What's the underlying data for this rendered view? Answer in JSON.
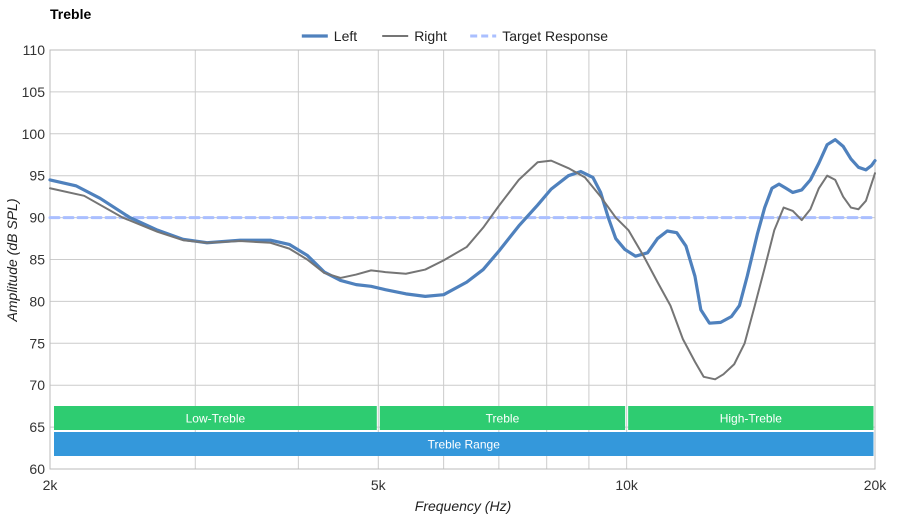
{
  "chart_data": {
    "type": "line",
    "title": "Treble",
    "xlabel": "Frequency (Hz)",
    "ylabel": "Amplitude (dB SPL)",
    "x_scale": "log",
    "xlim": [
      2000,
      20000
    ],
    "ylim": [
      60,
      110
    ],
    "x_ticks": [
      {
        "value": 2000,
        "label": "2k"
      },
      {
        "value": 5000,
        "label": "5k"
      },
      {
        "value": 10000,
        "label": "10k"
      },
      {
        "value": 20000,
        "label": "20k"
      }
    ],
    "x_grid": [
      2000,
      3000,
      4000,
      5000,
      6000,
      7000,
      8000,
      9000,
      10000,
      20000
    ],
    "y_ticks": [
      60,
      65,
      70,
      75,
      80,
      85,
      90,
      95,
      100,
      105,
      110
    ],
    "grid": true,
    "legend": "top-center",
    "series": [
      {
        "name": "Left",
        "color": "#4f81bd",
        "style": "solid-thick",
        "points": [
          [
            2000,
            94.5
          ],
          [
            2150,
            93.8
          ],
          [
            2300,
            92.3
          ],
          [
            2500,
            90.0
          ],
          [
            2700,
            88.5
          ],
          [
            2900,
            87.4
          ],
          [
            3100,
            87.0
          ],
          [
            3400,
            87.3
          ],
          [
            3700,
            87.3
          ],
          [
            3900,
            86.8
          ],
          [
            4100,
            85.5
          ],
          [
            4300,
            83.5
          ],
          [
            4500,
            82.5
          ],
          [
            4700,
            82.0
          ],
          [
            4900,
            81.8
          ],
          [
            5100,
            81.4
          ],
          [
            5400,
            80.9
          ],
          [
            5700,
            80.6
          ],
          [
            6000,
            80.8
          ],
          [
            6400,
            82.3
          ],
          [
            6700,
            83.8
          ],
          [
            7000,
            86.0
          ],
          [
            7400,
            89.0
          ],
          [
            7800,
            91.5
          ],
          [
            8100,
            93.4
          ],
          [
            8500,
            95.0
          ],
          [
            8800,
            95.5
          ],
          [
            9100,
            94.8
          ],
          [
            9300,
            93.0
          ],
          [
            9500,
            90.0
          ],
          [
            9700,
            87.5
          ],
          [
            9950,
            86.2
          ],
          [
            10250,
            85.4
          ],
          [
            10600,
            85.8
          ],
          [
            10900,
            87.5
          ],
          [
            11200,
            88.4
          ],
          [
            11500,
            88.2
          ],
          [
            11800,
            86.6
          ],
          [
            12100,
            83.0
          ],
          [
            12300,
            79.0
          ],
          [
            12600,
            77.4
          ],
          [
            13000,
            77.5
          ],
          [
            13400,
            78.2
          ],
          [
            13700,
            79.5
          ],
          [
            14000,
            83.0
          ],
          [
            14400,
            88.0
          ],
          [
            14700,
            91.2
          ],
          [
            15000,
            93.5
          ],
          [
            15300,
            94.0
          ],
          [
            15600,
            93.5
          ],
          [
            15900,
            93.0
          ],
          [
            16300,
            93.3
          ],
          [
            16700,
            94.5
          ],
          [
            17100,
            96.5
          ],
          [
            17500,
            98.7
          ],
          [
            17900,
            99.3
          ],
          [
            18300,
            98.5
          ],
          [
            18700,
            97.0
          ],
          [
            19100,
            96.0
          ],
          [
            19500,
            95.7
          ],
          [
            19800,
            96.2
          ],
          [
            20000,
            96.8
          ]
        ]
      },
      {
        "name": "Right",
        "color": "#757575",
        "style": "solid",
        "points": [
          [
            2000,
            93.5
          ],
          [
            2200,
            92.6
          ],
          [
            2450,
            90.0
          ],
          [
            2700,
            88.3
          ],
          [
            2900,
            87.3
          ],
          [
            3100,
            87.0
          ],
          [
            3400,
            87.2
          ],
          [
            3700,
            87.0
          ],
          [
            3900,
            86.3
          ],
          [
            4100,
            85.0
          ],
          [
            4300,
            83.4
          ],
          [
            4500,
            82.8
          ],
          [
            4700,
            83.2
          ],
          [
            4900,
            83.7
          ],
          [
            5100,
            83.5
          ],
          [
            5400,
            83.3
          ],
          [
            5700,
            83.8
          ],
          [
            6000,
            84.9
          ],
          [
            6400,
            86.5
          ],
          [
            6700,
            88.8
          ],
          [
            7000,
            91.4
          ],
          [
            7400,
            94.5
          ],
          [
            7800,
            96.6
          ],
          [
            8100,
            96.8
          ],
          [
            8500,
            95.9
          ],
          [
            8900,
            94.8
          ],
          [
            9300,
            92.5
          ],
          [
            9700,
            90.0
          ],
          [
            10050,
            88.5
          ],
          [
            10500,
            85.3
          ],
          [
            10900,
            82.3
          ],
          [
            11300,
            79.5
          ],
          [
            11700,
            75.5
          ],
          [
            12100,
            72.8
          ],
          [
            12400,
            71.0
          ],
          [
            12800,
            70.7
          ],
          [
            13100,
            71.3
          ],
          [
            13500,
            72.5
          ],
          [
            13900,
            75.0
          ],
          [
            14300,
            79.5
          ],
          [
            14700,
            84.0
          ],
          [
            15100,
            88.5
          ],
          [
            15500,
            91.2
          ],
          [
            15900,
            90.8
          ],
          [
            16300,
            89.7
          ],
          [
            16700,
            91.0
          ],
          [
            17100,
            93.5
          ],
          [
            17500,
            95.0
          ],
          [
            17900,
            94.5
          ],
          [
            18300,
            92.5
          ],
          [
            18700,
            91.2
          ],
          [
            19100,
            91.0
          ],
          [
            19500,
            92.0
          ],
          [
            20000,
            95.3
          ]
        ]
      },
      {
        "name": "Target Response",
        "color": "#aabfff",
        "style": "dashed",
        "points": [
          [
            2000,
            90.0
          ],
          [
            20000,
            90.0
          ]
        ]
      }
    ],
    "bands": [
      {
        "label": "Low-Treble",
        "x_start": 2000,
        "x_end": 5000,
        "row": 1,
        "color": "#2ecc71"
      },
      {
        "label": "Treble",
        "x_start": 5000,
        "x_end": 10000,
        "row": 1,
        "color": "#2ecc71"
      },
      {
        "label": "High-Treble",
        "x_start": 10000,
        "x_end": 20000,
        "row": 1,
        "color": "#2ecc71"
      },
      {
        "label": "Treble Range",
        "x_start": 2000,
        "x_end": 20000,
        "row": 2,
        "color": "#3498db"
      }
    ]
  }
}
